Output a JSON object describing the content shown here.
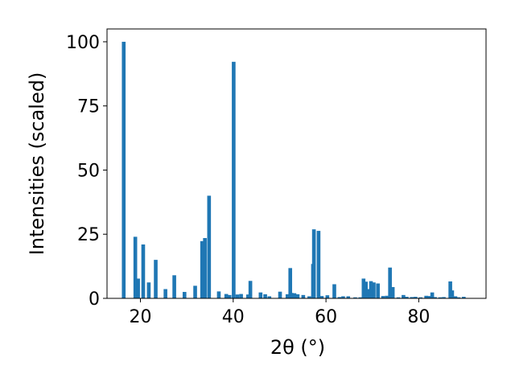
{
  "chart_data": {
    "type": "bar",
    "title": "",
    "xlabel": "2θ (°)",
    "ylabel": "Intensities (scaled)",
    "xlim": [
      12.8,
      94.5
    ],
    "ylim": [
      0,
      105
    ],
    "xticks": [
      20,
      40,
      60,
      80
    ],
    "yticks": [
      0,
      25,
      50,
      75,
      100
    ],
    "grid": false,
    "bar_color": "#1f77b4",
    "bar_width": 0.8,
    "series": [
      {
        "x": [
          16.4,
          18.9,
          19.5,
          20.6,
          21.8,
          23.3,
          25.4,
          27.3,
          29.5,
          31.8,
          33.3,
          33.9,
          34.8,
          36.9,
          38.5,
          39.2,
          40.1,
          40.9,
          41.7,
          43.2,
          43.7,
          45.9,
          46.9,
          47.8,
          50.1,
          51.7,
          52.3,
          52.6,
          53.2,
          53.9,
          55.1,
          56.4,
          57.2,
          57.4,
          58.4,
          59.1,
          60.3,
          61.8,
          62.9,
          63.7,
          64.8,
          66.3,
          67.4,
          68.1,
          68.6,
          69.2,
          69.7,
          70.3,
          71.2,
          72.3,
          73.1,
          73.8,
          74.4,
          75.6,
          76.7,
          77.4,
          78.5,
          79.3,
          80.4,
          81.6,
          82.3,
          82.9,
          83.5,
          84.6,
          85.4,
          86.8,
          87.2,
          87.9,
          88.6,
          89.7
        ],
        "values": [
          100,
          24,
          7.7,
          21,
          6.2,
          15,
          3.6,
          9,
          2.5,
          4.9,
          22.3,
          23.5,
          40,
          2.7,
          1.7,
          1.3,
          92.2,
          1.5,
          1.7,
          1.5,
          6.8,
          2.3,
          1.6,
          0.8,
          2.6,
          1.6,
          11.8,
          2.1,
          2,
          1.6,
          1.3,
          0.8,
          13.4,
          26.9,
          26.3,
          0.9,
          1.2,
          5.5,
          0.5,
          0.8,
          0.8,
          0.4,
          0.4,
          7.7,
          6.5,
          3.6,
          6.7,
          6.2,
          5.8,
          0.9,
          1,
          12,
          4.4,
          0.4,
          1.3,
          0.6,
          0.5,
          0.6,
          0.4,
          1,
          0.9,
          2.3,
          0.5,
          0.4,
          0.5,
          6.6,
          3.1,
          0.8,
          0.4,
          0.6
        ]
      }
    ]
  }
}
